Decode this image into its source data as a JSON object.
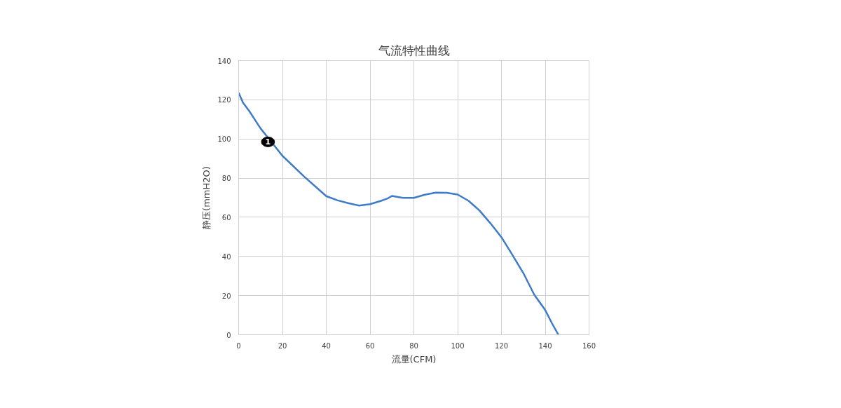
{
  "chart_data": {
    "type": "line",
    "title": "气流特性曲线",
    "xlabel": "流量(CFM)",
    "ylabel": "静压(mmH2O)",
    "x": [
      0,
      2,
      5,
      10,
      20,
      30,
      40,
      45,
      50,
      55,
      60,
      65,
      68,
      70,
      75,
      80,
      85,
      90,
      95,
      100,
      105,
      110,
      115,
      120,
      125,
      130,
      135,
      140,
      143,
      146
    ],
    "series": [
      {
        "color": "#3e7cc9",
        "values": [
          123.6,
          118.5,
          114,
          105.4,
          91.4,
          80.7,
          70.8,
          68.7,
          67.2,
          66,
          66.7,
          68.4,
          69.6,
          70.9,
          69.9,
          69.9,
          71.5,
          72.6,
          72.5,
          71.6,
          68.4,
          63.4,
          56.9,
          49.8,
          40.8,
          31.5,
          20.4,
          12.6,
          6,
          0
        ]
      }
    ],
    "xlim": [
      0,
      160
    ],
    "xticks": [
      0,
      20,
      40,
      60,
      80,
      100,
      120,
      140,
      160
    ],
    "ylim": [
      0,
      140
    ],
    "yticks": [
      0,
      20,
      40,
      60,
      80,
      100,
      120,
      140
    ],
    "grid": true,
    "marker": "none",
    "line_style": "solid",
    "annotations": [
      {
        "text": "1",
        "x": 13.4,
        "y": 98.5
      }
    ]
  }
}
